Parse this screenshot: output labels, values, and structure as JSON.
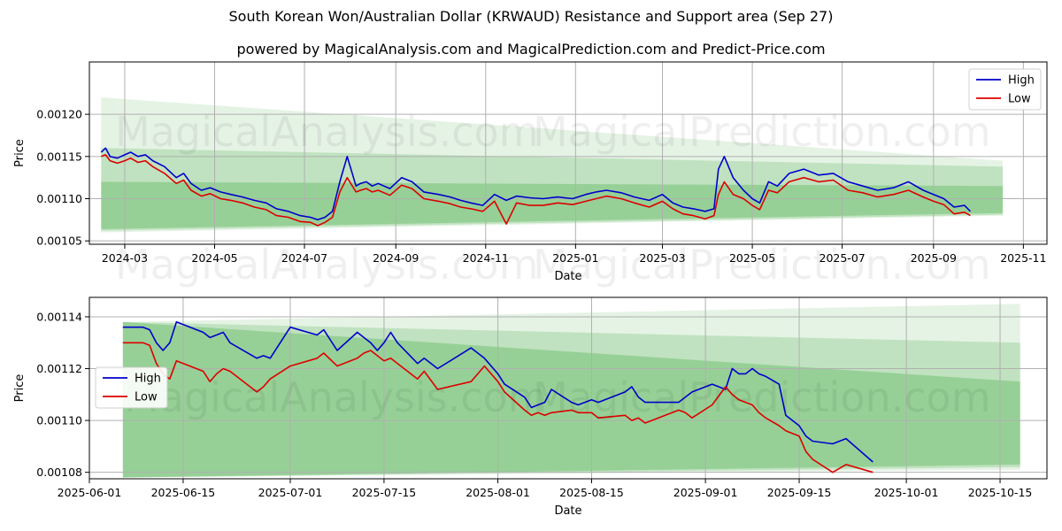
{
  "title": "South Korean Won/Australian Dollar (KRWAUD) Resistance and Support area (Sep 27)",
  "subtitle": "powered by MagicalAnalysis.com and MagicalPrediction.com and Predict-Price.com",
  "watermarks": [
    "MagicalAnalysis.com",
    "MagicalPrediction.com"
  ],
  "colors": {
    "high": "#0000cc",
    "low": "#dd0000",
    "band": "#2ca02c",
    "grid": "#b0b0b0"
  },
  "chart_data": [
    {
      "type": "line",
      "name": "top",
      "xlabel": "Date",
      "ylabel": "Price",
      "xlim": [
        "2024-02-06",
        "2025-11-17"
      ],
      "ylim": [
        0.001046,
        0.001262
      ],
      "xtick_labels": [
        "2024-03",
        "2024-05",
        "2024-07",
        "2024-09",
        "2024-11",
        "2025-01",
        "2025-03",
        "2025-05",
        "2025-07",
        "2025-09",
        "2025-11"
      ],
      "xtick_dates": [
        "2024-03-01",
        "2024-05-01",
        "2024-07-01",
        "2024-09-01",
        "2024-11-01",
        "2025-01-01",
        "2025-03-01",
        "2025-05-01",
        "2025-07-01",
        "2025-09-01",
        "2025-11-01"
      ],
      "ytick_values": [
        0.00105,
        0.0011,
        0.00115,
        0.0012
      ],
      "ytick_labels": [
        "0.00105",
        "0.00110",
        "0.00115",
        "0.00120"
      ],
      "legend": {
        "location": "top-right",
        "entries": [
          "High",
          "Low"
        ]
      },
      "bands": [
        {
          "start": "2024-02-14",
          "end": "2025-10-18",
          "upper": [
            0.00122,
            0.001145
          ],
          "lower": [
            0.00106,
            0.00108
          ],
          "opacity": 0.12
        },
        {
          "start": "2024-02-14",
          "end": "2025-10-18",
          "upper": [
            0.00116,
            0.001138
          ],
          "lower": [
            0.001062,
            0.001081
          ],
          "opacity": 0.2
        },
        {
          "start": "2024-02-14",
          "end": "2025-10-18",
          "upper": [
            0.00112,
            0.001115
          ],
          "lower": [
            0.001064,
            0.001083
          ],
          "opacity": 0.28
        }
      ],
      "series": [
        {
          "name": "High",
          "x": [
            "2024-02-14",
            "2024-02-17",
            "2024-02-20",
            "2024-02-25",
            "2024-03-01",
            "2024-03-05",
            "2024-03-10",
            "2024-03-15",
            "2024-03-20",
            "2024-03-28",
            "2024-04-05",
            "2024-04-10",
            "2024-04-15",
            "2024-04-22",
            "2024-04-28",
            "2024-05-05",
            "2024-05-12",
            "2024-05-20",
            "2024-05-28",
            "2024-06-05",
            "2024-06-12",
            "2024-06-20",
            "2024-06-28",
            "2024-07-05",
            "2024-07-10",
            "2024-07-15",
            "2024-07-20",
            "2024-07-25",
            "2024-07-30",
            "2024-08-05",
            "2024-08-08",
            "2024-08-12",
            "2024-08-16",
            "2024-08-20",
            "2024-08-28",
            "2024-09-05",
            "2024-09-12",
            "2024-09-20",
            "2024-09-30",
            "2024-10-08",
            "2024-10-15",
            "2024-10-22",
            "2024-10-30",
            "2024-11-07",
            "2024-11-15",
            "2024-11-22",
            "2024-12-01",
            "2024-12-10",
            "2024-12-20",
            "2024-12-30",
            "2025-01-08",
            "2025-01-15",
            "2025-01-22",
            "2025-02-01",
            "2025-02-10",
            "2025-02-20",
            "2025-03-01",
            "2025-03-08",
            "2025-03-15",
            "2025-03-22",
            "2025-03-30",
            "2025-04-05",
            "2025-04-08",
            "2025-04-12",
            "2025-04-18",
            "2025-04-25",
            "2025-05-01",
            "2025-05-06",
            "2025-05-12",
            "2025-05-18",
            "2025-05-26",
            "2025-06-05",
            "2025-06-15",
            "2025-06-25",
            "2025-07-05",
            "2025-07-15",
            "2025-07-25",
            "2025-08-05",
            "2025-08-15",
            "2025-08-25",
            "2025-09-01",
            "2025-09-08",
            "2025-09-15",
            "2025-09-22",
            "2025-09-26"
          ],
          "values": [
            0.001155,
            0.00116,
            0.00115,
            0.001148,
            0.001152,
            0.001155,
            0.00115,
            0.001152,
            0.001145,
            0.001138,
            0.001125,
            0.00113,
            0.001118,
            0.00111,
            0.001113,
            0.001108,
            0.001105,
            0.001102,
            0.001098,
            0.001095,
            0.001088,
            0.001085,
            0.00108,
            0.001078,
            0.001075,
            0.001078,
            0.001085,
            0.00112,
            0.00115,
            0.001115,
            0.001118,
            0.00112,
            0.001115,
            0.001118,
            0.001112,
            0.001125,
            0.00112,
            0.001108,
            0.001105,
            0.001102,
            0.001098,
            0.001095,
            0.001092,
            0.001105,
            0.001098,
            0.001103,
            0.001101,
            0.0011,
            0.001102,
            0.0011,
            0.001105,
            0.001108,
            0.00111,
            0.001107,
            0.001102,
            0.001098,
            0.001105,
            0.001095,
            0.00109,
            0.001088,
            0.001085,
            0.001088,
            0.001135,
            0.00115,
            0.001125,
            0.00111,
            0.0011,
            0.001095,
            0.00112,
            0.001115,
            0.00113,
            0.001135,
            0.001128,
            0.00113,
            0.00112,
            0.001115,
            0.00111,
            0.001113,
            0.00112,
            0.00111,
            0.001105,
            0.0011,
            0.00109,
            0.001092,
            0.001085
          ]
        },
        {
          "name": "Low",
          "x": [
            "2024-02-14",
            "2024-02-17",
            "2024-02-20",
            "2024-02-25",
            "2024-03-01",
            "2024-03-05",
            "2024-03-10",
            "2024-03-15",
            "2024-03-20",
            "2024-03-28",
            "2024-04-05",
            "2024-04-10",
            "2024-04-15",
            "2024-04-22",
            "2024-04-28",
            "2024-05-05",
            "2024-05-12",
            "2024-05-20",
            "2024-05-28",
            "2024-06-05",
            "2024-06-12",
            "2024-06-20",
            "2024-06-28",
            "2024-07-05",
            "2024-07-10",
            "2024-07-15",
            "2024-07-20",
            "2024-07-25",
            "2024-07-30",
            "2024-08-05",
            "2024-08-08",
            "2024-08-12",
            "2024-08-16",
            "2024-08-20",
            "2024-08-28",
            "2024-09-05",
            "2024-09-12",
            "2024-09-20",
            "2024-09-30",
            "2024-10-08",
            "2024-10-15",
            "2024-10-22",
            "2024-10-30",
            "2024-11-07",
            "2024-11-15",
            "2024-11-22",
            "2024-12-01",
            "2024-12-10",
            "2024-12-20",
            "2024-12-30",
            "2025-01-08",
            "2025-01-15",
            "2025-01-22",
            "2025-02-01",
            "2025-02-10",
            "2025-02-20",
            "2025-03-01",
            "2025-03-08",
            "2025-03-15",
            "2025-03-22",
            "2025-03-30",
            "2025-04-05",
            "2025-04-08",
            "2025-04-12",
            "2025-04-18",
            "2025-04-25",
            "2025-05-01",
            "2025-05-06",
            "2025-05-12",
            "2025-05-18",
            "2025-05-26",
            "2025-06-05",
            "2025-06-15",
            "2025-06-25",
            "2025-07-05",
            "2025-07-15",
            "2025-07-25",
            "2025-08-05",
            "2025-08-15",
            "2025-08-25",
            "2025-09-01",
            "2025-09-08",
            "2025-09-15",
            "2025-09-22",
            "2025-09-26"
          ],
          "values": [
            0.00115,
            0.001152,
            0.001145,
            0.001142,
            0.001145,
            0.001148,
            0.001143,
            0.001145,
            0.001138,
            0.00113,
            0.001118,
            0.001122,
            0.00111,
            0.001103,
            0.001106,
            0.0011,
            0.001098,
            0.001095,
            0.00109,
            0.001087,
            0.00108,
            0.001078,
            0.001073,
            0.001072,
            0.001068,
            0.001072,
            0.001078,
            0.001108,
            0.001125,
            0.001108,
            0.00111,
            0.001112,
            0.001108,
            0.00111,
            0.001104,
            0.001116,
            0.001112,
            0.0011,
            0.001097,
            0.001094,
            0.00109,
            0.001088,
            0.001085,
            0.001097,
            0.00107,
            0.001095,
            0.001092,
            0.001092,
            0.001095,
            0.001093,
            0.001097,
            0.0011,
            0.001103,
            0.0011,
            0.001095,
            0.00109,
            0.001097,
            0.001088,
            0.001082,
            0.00108,
            0.001076,
            0.00108,
            0.001105,
            0.00112,
            0.001105,
            0.0011,
            0.001092,
            0.001087,
            0.00111,
            0.001107,
            0.00112,
            0.001125,
            0.00112,
            0.001122,
            0.00111,
            0.001107,
            0.001102,
            0.001105,
            0.00111,
            0.001102,
            0.001097,
            0.001093,
            0.001082,
            0.001084,
            0.00108
          ]
        }
      ]
    },
    {
      "type": "line",
      "name": "bottom",
      "xlabel": "Date",
      "ylabel": "Price",
      "xlim": [
        "2025-06-01",
        "2025-10-22"
      ],
      "ylim": [
        0.0010775,
        0.0011475
      ],
      "xtick_labels": [
        "2025-06-01",
        "2025-06-15",
        "2025-07-01",
        "2025-07-15",
        "2025-08-01",
        "2025-08-15",
        "2025-09-01",
        "2025-09-15",
        "2025-10-01",
        "2025-10-15"
      ],
      "xtick_dates": [
        "2025-06-01",
        "2025-06-15",
        "2025-07-01",
        "2025-07-15",
        "2025-08-01",
        "2025-08-15",
        "2025-09-01",
        "2025-09-15",
        "2025-10-01",
        "2025-10-15"
      ],
      "ytick_values": [
        0.00108,
        0.0011,
        0.00112,
        0.00114
      ],
      "ytick_labels": [
        "0.00108",
        "0.00110",
        "0.00112",
        "0.00114"
      ],
      "legend": {
        "location": "center-left",
        "entries": [
          "High",
          "Low"
        ]
      },
      "bands": [
        {
          "start": "2025-06-06",
          "end": "2025-10-18",
          "upper": [
            0.001138,
            0.001145
          ],
          "lower": [
            0.001078,
            0.001081
          ],
          "opacity": 0.12
        },
        {
          "start": "2025-06-06",
          "end": "2025-10-18",
          "upper": [
            0.001138,
            0.00113
          ],
          "lower": [
            0.001078,
            0.001082
          ],
          "opacity": 0.2
        },
        {
          "start": "2025-06-06",
          "end": "2025-10-18",
          "upper": [
            0.001138,
            0.001115
          ],
          "lower": [
            0.001078,
            0.001083
          ],
          "opacity": 0.28
        }
      ],
      "series": [
        {
          "name": "High",
          "x": [
            "2025-06-06",
            "2025-06-09",
            "2025-06-10",
            "2025-06-11",
            "2025-06-12",
            "2025-06-13",
            "2025-06-14",
            "2025-06-18",
            "2025-06-19",
            "2025-06-20",
            "2025-06-21",
            "2025-06-22",
            "2025-06-26",
            "2025-06-27",
            "2025-06-28",
            "2025-07-01",
            "2025-07-05",
            "2025-07-06",
            "2025-07-08",
            "2025-07-11",
            "2025-07-12",
            "2025-07-13",
            "2025-07-14",
            "2025-07-15",
            "2025-07-16",
            "2025-07-17",
            "2025-07-20",
            "2025-07-21",
            "2025-07-23",
            "2025-07-28",
            "2025-07-30",
            "2025-08-01",
            "2025-08-02",
            "2025-08-05",
            "2025-08-06",
            "2025-08-07",
            "2025-08-08",
            "2025-08-09",
            "2025-08-12",
            "2025-08-13",
            "2025-08-15",
            "2025-08-16",
            "2025-08-20",
            "2025-08-21",
            "2025-08-22",
            "2025-08-23",
            "2025-08-26",
            "2025-08-28",
            "2025-08-29",
            "2025-08-30",
            "2025-09-02",
            "2025-09-04",
            "2025-09-05",
            "2025-09-06",
            "2025-09-07",
            "2025-09-08",
            "2025-09-09",
            "2025-09-10",
            "2025-09-12",
            "2025-09-13",
            "2025-09-15",
            "2025-09-16",
            "2025-09-17",
            "2025-09-20",
            "2025-09-22",
            "2025-09-26"
          ],
          "values": [
            0.001136,
            0.001136,
            0.001135,
            0.00113,
            0.001127,
            0.00113,
            0.001138,
            0.001134,
            0.001132,
            0.001133,
            0.001134,
            0.00113,
            0.001124,
            0.001125,
            0.001124,
            0.001136,
            0.001133,
            0.001135,
            0.001127,
            0.001134,
            0.001132,
            0.00113,
            0.001127,
            0.00113,
            0.001134,
            0.00113,
            0.001122,
            0.001124,
            0.00112,
            0.001128,
            0.001124,
            0.001118,
            0.001114,
            0.001109,
            0.001105,
            0.001106,
            0.001107,
            0.001112,
            0.001107,
            0.001106,
            0.001108,
            0.001107,
            0.001111,
            0.001113,
            0.001109,
            0.001107,
            0.001107,
            0.001107,
            0.001109,
            0.001111,
            0.001114,
            0.001112,
            0.00112,
            0.001118,
            0.001118,
            0.00112,
            0.001118,
            0.001117,
            0.001114,
            0.001102,
            0.001098,
            0.001094,
            0.001092,
            0.001091,
            0.001093,
            0.001084
          ]
        },
        {
          "name": "Low",
          "x": [
            "2025-06-06",
            "2025-06-09",
            "2025-06-10",
            "2025-06-11",
            "2025-06-12",
            "2025-06-13",
            "2025-06-14",
            "2025-06-18",
            "2025-06-19",
            "2025-06-20",
            "2025-06-21",
            "2025-06-22",
            "2025-06-26",
            "2025-06-27",
            "2025-06-28",
            "2025-07-01",
            "2025-07-05",
            "2025-07-06",
            "2025-07-08",
            "2025-07-11",
            "2025-07-12",
            "2025-07-13",
            "2025-07-14",
            "2025-07-15",
            "2025-07-16",
            "2025-07-17",
            "2025-07-20",
            "2025-07-21",
            "2025-07-23",
            "2025-07-28",
            "2025-07-30",
            "2025-08-01",
            "2025-08-02",
            "2025-08-05",
            "2025-08-06",
            "2025-08-07",
            "2025-08-08",
            "2025-08-09",
            "2025-08-12",
            "2025-08-13",
            "2025-08-15",
            "2025-08-16",
            "2025-08-20",
            "2025-08-21",
            "2025-08-22",
            "2025-08-23",
            "2025-08-26",
            "2025-08-28",
            "2025-08-29",
            "2025-08-30",
            "2025-09-02",
            "2025-09-04",
            "2025-09-05",
            "2025-09-06",
            "2025-09-07",
            "2025-09-08",
            "2025-09-09",
            "2025-09-10",
            "2025-09-12",
            "2025-09-13",
            "2025-09-15",
            "2025-09-16",
            "2025-09-17",
            "2025-09-20",
            "2025-09-22",
            "2025-09-26"
          ],
          "values": [
            0.00113,
            0.00113,
            0.001129,
            0.001122,
            0.001118,
            0.001116,
            0.001123,
            0.001119,
            0.001115,
            0.001118,
            0.00112,
            0.001119,
            0.001111,
            0.001113,
            0.001116,
            0.001121,
            0.001124,
            0.001126,
            0.001121,
            0.001124,
            0.001126,
            0.001127,
            0.001125,
            0.001123,
            0.001124,
            0.001122,
            0.001116,
            0.001119,
            0.001112,
            0.001115,
            0.001121,
            0.001115,
            0.001111,
            0.001104,
            0.001102,
            0.001103,
            0.001102,
            0.001103,
            0.001104,
            0.001103,
            0.001103,
            0.001101,
            0.001102,
            0.0011,
            0.001101,
            0.001099,
            0.001102,
            0.001104,
            0.001103,
            0.001101,
            0.001106,
            0.001113,
            0.00111,
            0.001108,
            0.001107,
            0.001106,
            0.001103,
            0.001101,
            0.001098,
            0.001096,
            0.001094,
            0.001088,
            0.001085,
            0.00108,
            0.001083,
            0.00108
          ]
        }
      ]
    }
  ]
}
